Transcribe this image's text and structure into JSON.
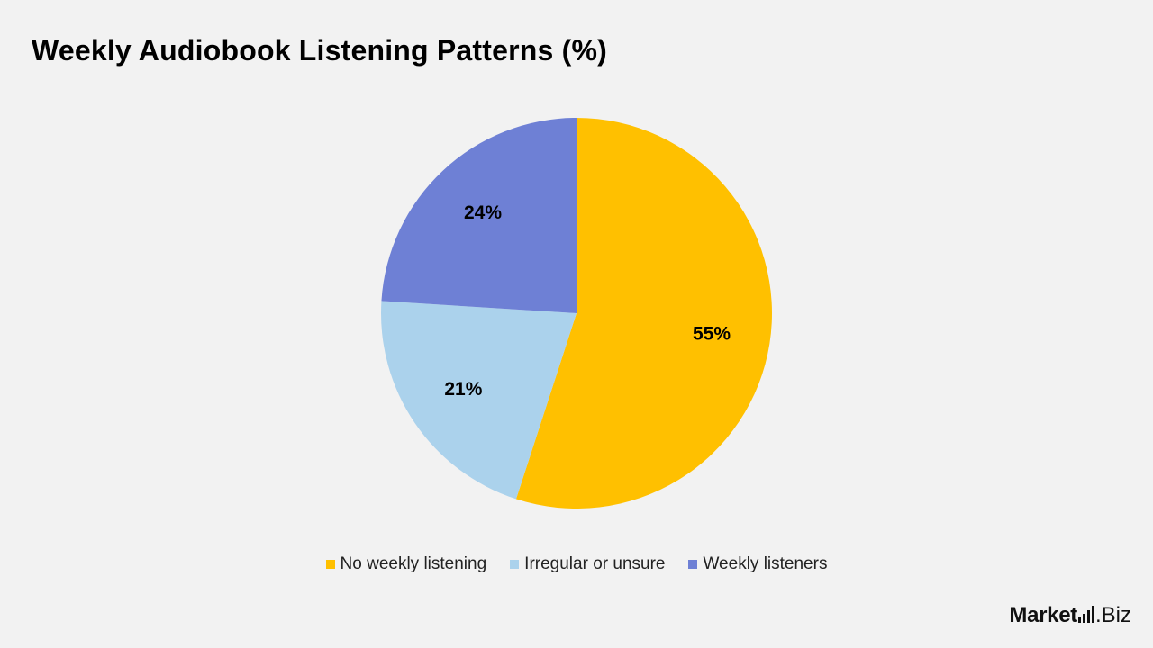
{
  "title": "Weekly Audiobook Listening Patterns (%)",
  "chart_data": {
    "type": "pie",
    "title": "Weekly Audiobook Listening Patterns (%)",
    "start_angle_deg": 0,
    "direction": "clockwise",
    "legend_placement": "bottom",
    "slices": [
      {
        "name": "No weekly listening",
        "value": 55,
        "label": "55%",
        "color": "#ffc000"
      },
      {
        "name": "Irregular or unsure",
        "value": 21,
        "label": "21%",
        "color": "#abd2ec"
      },
      {
        "name": "Weekly listeners",
        "value": 24,
        "label": "24%",
        "color": "#6e80d5"
      }
    ]
  },
  "brand": {
    "name_bold": "Market",
    "name_light": ".Biz",
    "icon": "bar-chart-icon"
  }
}
